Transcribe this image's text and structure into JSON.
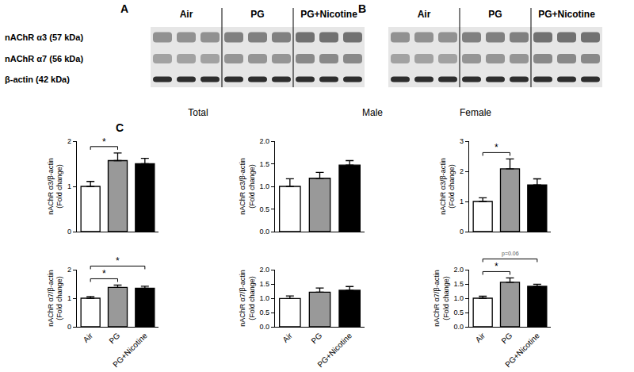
{
  "blots": {
    "rows": [
      "nAChR α3 (57 kDa)",
      "nAChR α7 (56 kDa)",
      "β-actin (42 kDa)"
    ],
    "panels": [
      {
        "label": "A",
        "groups": [
          "Air",
          "PG",
          "PG+Nicotine"
        ]
      },
      {
        "label": "B",
        "groups": [
          "Air",
          "PG",
          "PG+Nicotine"
        ]
      }
    ],
    "sections": [
      "Total",
      "Male",
      "Female"
    ],
    "panel_c": "C"
  },
  "chart_data": [
    {
      "type": "bar",
      "categories": [
        "Air",
        "PG",
        "PG+Nicotine"
      ],
      "values": [
        1.0,
        1.57,
        1.5
      ],
      "errors": [
        0.11,
        0.17,
        0.12
      ],
      "colors": [
        "#ffffff",
        "#999999",
        "#000000"
      ],
      "y_label": [
        "nAChR α3/β-actin",
        "(Fold change)"
      ],
      "ylim": [
        0,
        2
      ],
      "yticks": [
        0,
        1,
        2
      ],
      "grid": false,
      "tick_labels": "y",
      "significance": [
        {
          "from": 0,
          "to": 1,
          "label": "*"
        }
      ]
    },
    {
      "type": "bar",
      "categories": [
        "Air",
        "PG",
        "PG+Nicotine"
      ],
      "values": [
        1.0,
        1.18,
        1.47
      ],
      "errors": [
        0.17,
        0.13,
        0.1
      ],
      "colors": [
        "#ffffff",
        "#999999",
        "#000000"
      ],
      "y_label": [
        "nAChR α3/β-actin",
        "(Fold change)"
      ],
      "ylim": [
        0,
        2
      ],
      "yticks": [
        {
          "value": 0,
          "label": "0.0"
        },
        {
          "value": 0.5,
          "label": "0.5"
        },
        {
          "value": 1,
          "label": "1.0"
        },
        {
          "value": 1.5,
          "label": "1.5"
        },
        {
          "value": 2,
          "label": "2.0"
        }
      ],
      "grid": false,
      "tick_labels": "y",
      "significance": []
    },
    {
      "type": "bar",
      "categories": [
        "Air",
        "PG",
        "PG+Nicotine"
      ],
      "values": [
        1.0,
        2.08,
        1.55
      ],
      "errors": [
        0.12,
        0.33,
        0.2
      ],
      "colors": [
        "#ffffff",
        "#999999",
        "#000000"
      ],
      "y_label": [
        "nAChR α3/β-actin",
        "(Fold change)"
      ],
      "ylim": [
        0,
        3
      ],
      "yticks": [
        0,
        1,
        2,
        3
      ],
      "grid": false,
      "tick_labels": "y",
      "significance": [
        {
          "from": 0,
          "to": 1,
          "label": "*"
        }
      ]
    },
    {
      "type": "bar",
      "categories": [
        "Air",
        "PG",
        "PG+Nicotine"
      ],
      "values": [
        1.0,
        1.38,
        1.35
      ],
      "errors": [
        0.06,
        0.08,
        0.07
      ],
      "colors": [
        "#ffffff",
        "#999999",
        "#000000"
      ],
      "y_label": [
        "nAChR α7/β-actin",
        "(Fold change)"
      ],
      "ylim": [
        0,
        2
      ],
      "yticks": [
        0,
        1,
        2
      ],
      "grid": false,
      "significance": [
        {
          "from": 0,
          "to": 1,
          "label": "*"
        },
        {
          "from": 0,
          "to": 2,
          "label": "*"
        }
      ]
    },
    {
      "type": "bar",
      "categories": [
        "Air",
        "PG",
        "PG+Nicotine"
      ],
      "values": [
        0.99,
        1.21,
        1.28
      ],
      "errors": [
        0.09,
        0.15,
        0.13
      ],
      "colors": [
        "#ffffff",
        "#999999",
        "#000000"
      ],
      "y_label": [
        "nAChR α7/β-actin",
        "(Fold change)"
      ],
      "ylim": [
        0,
        2
      ],
      "yticks": [
        {
          "value": 0,
          "label": "0.0"
        },
        {
          "value": 0.5,
          "label": "0.5"
        },
        {
          "value": 1,
          "label": "1.0"
        },
        {
          "value": 1.5,
          "label": "1.5"
        },
        {
          "value": 2,
          "label": "2.0"
        }
      ],
      "grid": false,
      "significance": []
    },
    {
      "type": "bar",
      "categories": [
        "Air",
        "PG",
        "PG+Nicotine"
      ],
      "values": [
        1.0,
        1.56,
        1.42
      ],
      "errors": [
        0.07,
        0.15,
        0.07
      ],
      "colors": [
        "#ffffff",
        "#999999",
        "#000000"
      ],
      "y_label": [
        "nAChR α7/β-actin",
        "(Fold change)"
      ],
      "ylim": [
        0,
        2
      ],
      "yticks": [
        {
          "value": 0,
          "label": "0.0"
        },
        {
          "value": 0.5,
          "label": "0.5"
        },
        {
          "value": 1,
          "label": "1.0"
        },
        {
          "value": 1.5,
          "label": "1.5"
        },
        {
          "value": 2,
          "label": "2.0"
        }
      ],
      "grid": false,
      "significance": [
        {
          "from": 0,
          "to": 1,
          "label": "*"
        },
        {
          "from": 0,
          "to": 2,
          "label": "p=0.06"
        }
      ]
    }
  ]
}
